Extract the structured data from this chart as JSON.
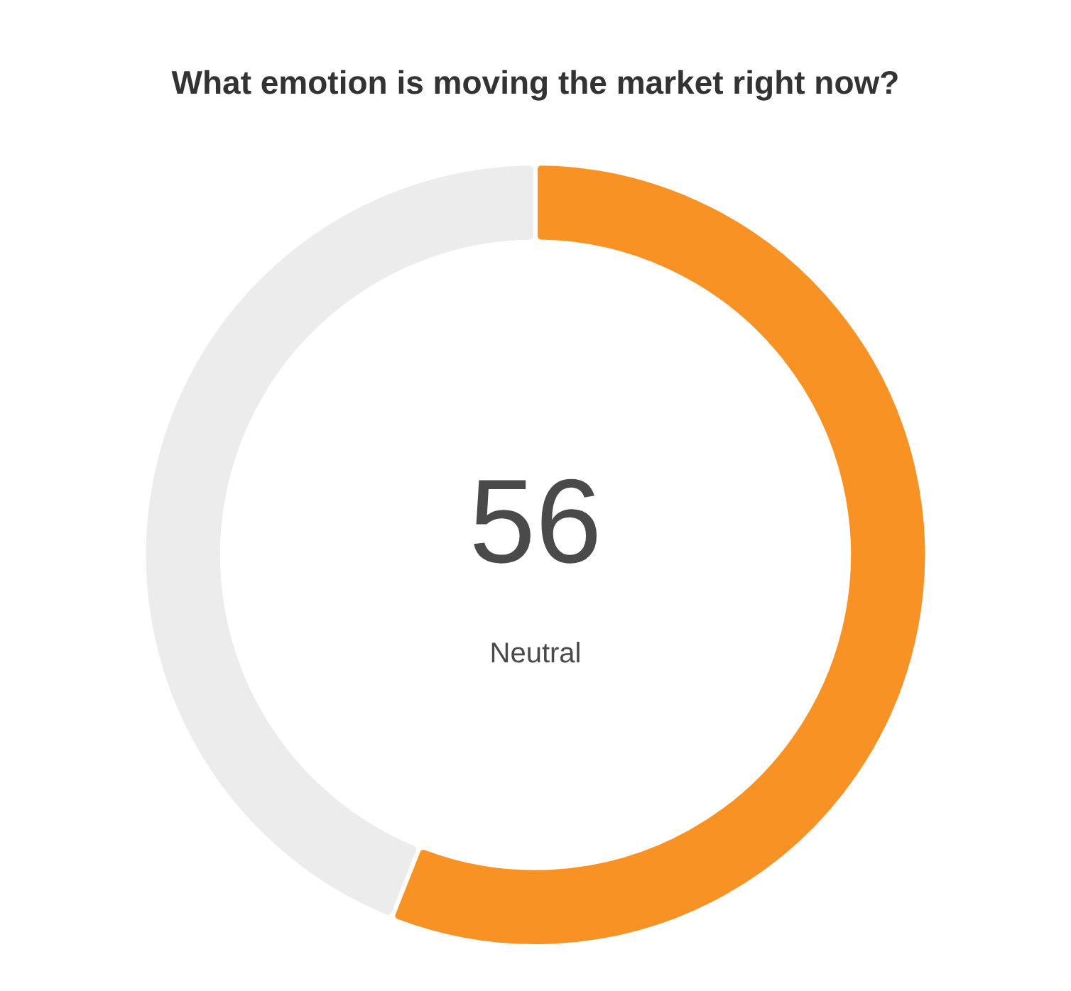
{
  "chart_data": {
    "type": "donut",
    "title": "What emotion is moving the market right now?",
    "categories": [
      null,
      null
    ],
    "values": [
      56,
      44
    ],
    "colors": [
      "#f99224",
      "#ececec"
    ],
    "annotations": [
      "56",
      "Neutral"
    ],
    "legend": false
  }
}
